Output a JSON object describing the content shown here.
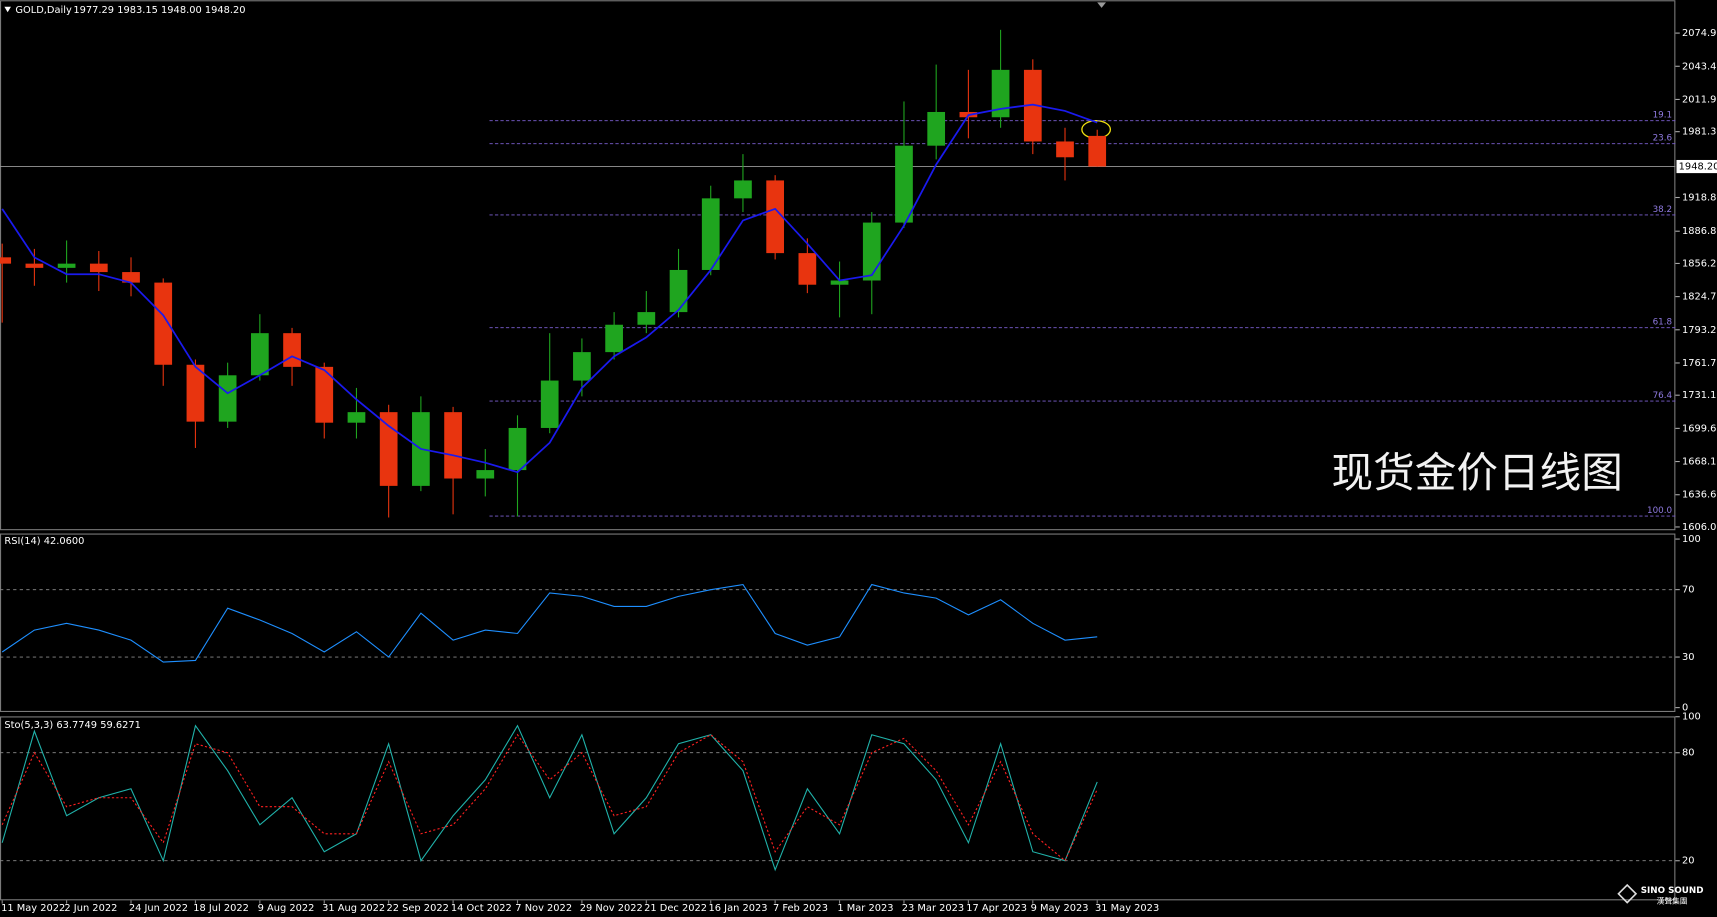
{
  "chart_data": [
    {
      "type": "candlestick",
      "title": "GOLD,Daily",
      "subtitle": "1977.29 1983.15 1948.00 1948.20",
      "categories": [
        "11 May 2022",
        null,
        "2 Jun 2022",
        null,
        "24 Jun 2022",
        null,
        "18 Jul 2022",
        null,
        "9 Aug 2022",
        null,
        "31 Aug 2022",
        null,
        "22 Sep 2022",
        null,
        "14 Oct 2022",
        null,
        "7 Nov 2022",
        null,
        "29 Nov 2022",
        null,
        "21 Dec 2022",
        null,
        "16 Jan 2023",
        null,
        "7 Feb 2023",
        null,
        "1 Mar 2023",
        null,
        "23 Mar 2023",
        null,
        "17 Apr 2023",
        null,
        "9 May 2023",
        null,
        "31 May 2023"
      ],
      "open": [
        1862,
        1856,
        1852,
        1856,
        1848,
        1838,
        1760,
        1706,
        1750,
        1790,
        1758,
        1705,
        1715,
        1645,
        1715,
        1652,
        1660,
        1700,
        1745,
        1772,
        1798,
        1810,
        1850,
        1918,
        1935,
        1866,
        1836,
        1840,
        1895,
        1968,
        2000,
        1995,
        2040,
        1972,
        1977.29
      ],
      "high": [
        1875,
        1870,
        1878,
        1868,
        1862,
        1842,
        1765,
        1762,
        1808,
        1795,
        1762,
        1738,
        1722,
        1730,
        1720,
        1680,
        1712,
        1790,
        1785,
        1810,
        1830,
        1870,
        1930,
        1960,
        1940,
        1880,
        1858,
        1905,
        2010,
        2045,
        2040,
        2078,
        2050,
        1985,
        1983.15
      ],
      "low": [
        1800,
        1835,
        1838,
        1830,
        1825,
        1740,
        1681,
        1700,
        1745,
        1740,
        1690,
        1690,
        1615,
        1640,
        1618,
        1635,
        1616,
        1695,
        1730,
        1765,
        1790,
        1805,
        1845,
        1905,
        1860,
        1828,
        1805,
        1808,
        1890,
        1955,
        1975,
        1985,
        1960,
        1935,
        1948
      ],
      "close": [
        1856,
        1852,
        1856,
        1848,
        1838,
        1760,
        1706,
        1750,
        1790,
        1758,
        1705,
        1715,
        1645,
        1715,
        1652,
        1660,
        1700,
        1745,
        1772,
        1798,
        1810,
        1850,
        1918,
        1935,
        1866,
        1836,
        1840,
        1895,
        1968,
        2000,
        1995,
        2040,
        1972,
        1957,
        1948.2
      ],
      "up_color": "#1fa51f",
      "down_color": "#e8340f",
      "moving_average": {
        "color": "#1a1aee",
        "values": [
          1908,
          1862,
          1846,
          1846,
          1838,
          1807,
          1758,
          1733,
          1750,
          1768,
          1755,
          1727,
          1702,
          1680,
          1674,
          1667,
          1658,
          1686,
          1738,
          1768,
          1786,
          1812,
          1850,
          1897,
          1908,
          1875,
          1840,
          1845,
          1892,
          1950,
          1997,
          2003,
          2007,
          2001,
          1990
        ]
      },
      "ylim": [
        1602.9,
        2106.1
      ],
      "yticks": [
        {
          "value": 2074.9,
          "label": "2074.90"
        },
        {
          "value": 2043.4,
          "label": "2043.40"
        },
        {
          "value": 2011.9,
          "label": "2011.90"
        },
        {
          "value": 1981.3,
          "label": "1981.30"
        },
        {
          "value": 1918.8,
          "label": "1918.80"
        },
        {
          "value": 1886.8,
          "label": "1886.80"
        },
        {
          "value": 1856.2,
          "label": "1856.20"
        },
        {
          "value": 1824.7,
          "label": "1824.70"
        },
        {
          "value": 1793.2,
          "label": "1793.20"
        },
        {
          "value": 1761.7,
          "label": "1761.70"
        },
        {
          "value": 1731.1,
          "label": "1731.10"
        },
        {
          "value": 1699.6,
          "label": "1699.60"
        },
        {
          "value": 1668.1,
          "label": "1668.10"
        },
        {
          "value": 1636.6,
          "label": "1636.60"
        },
        {
          "value": 1606,
          "label": "1606.00"
        }
      ],
      "last_price": {
        "value": 1948.2,
        "label": "1948.20"
      },
      "fib_levels": [
        {
          "label": "19.1",
          "price": 1991.7
        },
        {
          "label": "23.6",
          "price": 1969.9
        },
        {
          "label": "38.2",
          "price": 1902.3
        },
        {
          "label": "61.8",
          "price": 1795.2
        },
        {
          "label": "76.4",
          "price": 1725.5
        },
        {
          "label": "100.0",
          "price": 1616.4
        }
      ],
      "watermark": "现货金价日线图"
    },
    {
      "type": "line",
      "title": "RSI(14) 42.0600",
      "series": [
        {
          "color": "#1e8fff",
          "values": [
            33,
            46,
            50,
            46,
            40,
            27,
            28,
            59,
            52,
            44,
            33,
            45,
            30,
            56,
            40,
            46,
            44,
            68,
            66,
            60,
            60,
            66,
            70,
            73,
            44,
            37,
            42,
            73,
            68,
            65,
            55,
            64,
            50,
            40,
            42.06
          ]
        }
      ],
      "ylim": [
        -2.6,
        103.3
      ],
      "yticks": [
        100,
        70,
        30,
        0
      ],
      "levels": [
        70,
        30
      ]
    },
    {
      "type": "line",
      "title": "Sto(5,3,3) 63.7749 59.6271",
      "series": [
        {
          "color": "#20b2aa",
          "values": [
            30,
            92,
            45,
            55,
            60,
            20,
            95,
            70,
            40,
            55,
            25,
            35,
            85,
            20,
            45,
            65,
            95,
            55,
            90,
            35,
            55,
            85,
            90,
            70,
            15,
            60,
            35,
            90,
            85,
            65,
            30,
            85,
            25,
            20,
            63.7749
          ]
        },
        {
          "color": "#ff2020",
          "dashed": true,
          "values": [
            40,
            80,
            50,
            55,
            55,
            30,
            85,
            80,
            50,
            50,
            35,
            35,
            75,
            35,
            40,
            60,
            90,
            65,
            80,
            45,
            50,
            80,
            90,
            75,
            25,
            50,
            40,
            80,
            88,
            70,
            40,
            75,
            35,
            20,
            59.6271
          ]
        }
      ],
      "ylim": [
        -2,
        100.2
      ],
      "yticks": [
        100,
        80,
        20
      ],
      "levels": [
        80,
        20
      ]
    }
  ],
  "logo": "SINO SOUND",
  "logo_sub": "漢聲集團"
}
